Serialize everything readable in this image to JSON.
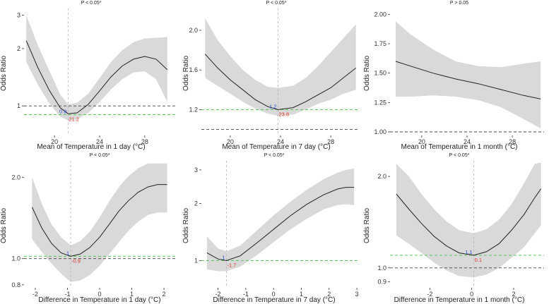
{
  "figure": {
    "colors": {
      "band": "#d9d9d9",
      "curve": "#222222",
      "ref_line": "#444444",
      "min_line": "#45c545",
      "vline": "#b5b5b5",
      "or_label": "#2b4fd6",
      "temp_label": "#e0302a"
    }
  },
  "chart_data": [
    {
      "type": "line",
      "title": "P < 0.05*",
      "xlabel": "Mean of Temperature in 1 day (°C)",
      "ylabel": "Odds Ratio",
      "xlim": [
        17.3,
        30.7
      ],
      "ylim": [
        0.7,
        3.25
      ],
      "ylog": true,
      "xticks": [
        20,
        24,
        28
      ],
      "xtick_labels": [
        "20",
        "24",
        "28"
      ],
      "yticks": [
        1,
        2,
        3
      ],
      "ytick_labels": [
        "1",
        "2",
        "3"
      ],
      "x": [
        17.5,
        18.5,
        19.5,
        20.5,
        21.2,
        22.0,
        23.0,
        24.0,
        25.0,
        26.0,
        27.0,
        28.0,
        29.0,
        30.0
      ],
      "y": [
        2.2,
        1.6,
        1.22,
        0.98,
        0.91,
        0.92,
        1.02,
        1.2,
        1.42,
        1.62,
        1.76,
        1.82,
        1.76,
        1.55
      ],
      "lower": [
        1.7,
        1.3,
        1.04,
        0.88,
        0.84,
        0.85,
        0.92,
        1.05,
        1.22,
        1.38,
        1.5,
        1.52,
        1.38,
        1.05
      ],
      "upper": [
        3.0,
        2.1,
        1.55,
        1.15,
        1.02,
        1.04,
        1.16,
        1.4,
        1.7,
        1.96,
        2.16,
        2.26,
        2.28,
        2.3
      ],
      "ref_line": 1,
      "min_line": 0.9,
      "vline_x": 21.2,
      "or_label": "0.9",
      "temp_label": "21.2"
    },
    {
      "type": "line",
      "title": "P < 0.05*",
      "xlabel": "Mean of Temperature in 7 day (°C)",
      "ylabel": "Odds Ratio",
      "xlim": [
        17.7,
        30.3
      ],
      "ylim": [
        0.94,
        2.22
      ],
      "ylog": false,
      "xticks": [
        20,
        24,
        28
      ],
      "xtick_labels": [
        "20",
        "24",
        "28"
      ],
      "yticks": [
        1.2,
        1.6,
        2.0
      ],
      "ytick_labels": [
        "1.2",
        "1.6",
        "2.0"
      ],
      "x": [
        18.0,
        19.0,
        20.0,
        21.0,
        22.0,
        23.0,
        23.8,
        25.0,
        26.0,
        27.0,
        28.0,
        29.0,
        30.0
      ],
      "y": [
        1.76,
        1.62,
        1.5,
        1.4,
        1.3,
        1.23,
        1.2,
        1.22,
        1.28,
        1.35,
        1.42,
        1.52,
        1.62
      ],
      "lower": [
        1.52,
        1.44,
        1.36,
        1.28,
        1.21,
        1.16,
        1.14,
        1.15,
        1.2,
        1.26,
        1.3,
        1.36,
        1.4
      ],
      "upper": [
        2.12,
        1.9,
        1.74,
        1.6,
        1.5,
        1.43,
        1.42,
        1.44,
        1.52,
        1.64,
        1.78,
        1.92,
        2.06
      ],
      "ref_line": 1,
      "min_line": 1.2,
      "vline_x": 23.8,
      "or_label": "1.2",
      "temp_label": "23.8"
    },
    {
      "type": "line",
      "title": "P > 0.05",
      "xlabel": "Mean of Temperature in 1 month (°C)",
      "ylabel": "Odds Ratio",
      "xlim": [
        17.2,
        30.8
      ],
      "ylim": [
        0.97,
        2.05
      ],
      "ylog": false,
      "xticks": [
        20,
        24,
        28
      ],
      "xtick_labels": [
        "20",
        "24",
        "28"
      ],
      "yticks": [
        1.0,
        1.25,
        1.5,
        1.75,
        2.0
      ],
      "ytick_labels": [
        "1.00",
        "1.25",
        "1.50",
        "1.75",
        "2.00"
      ],
      "x": [
        17.7,
        19.0,
        21.0,
        23.0,
        25.0,
        27.0,
        29.0,
        30.5
      ],
      "y": [
        1.6,
        1.56,
        1.5,
        1.45,
        1.41,
        1.36,
        1.31,
        1.28
      ],
      "lower": [
        1.3,
        1.3,
        1.31,
        1.3,
        1.27,
        1.21,
        1.11,
        1.03
      ],
      "upper": [
        1.94,
        1.83,
        1.7,
        1.6,
        1.56,
        1.55,
        1.58,
        1.6
      ],
      "ref_line": 1,
      "min_line": null,
      "vline_x": null,
      "or_label": "",
      "temp_label": ""
    },
    {
      "type": "line",
      "title": "P < 0.05*",
      "xlabel": "Difference in Temperature in 1 day (°C)",
      "ylabel": "Odds Ratio",
      "xlim": [
        -2.35,
        2.35
      ],
      "ylim": [
        0.78,
        2.3
      ],
      "ylog": true,
      "xticks": [
        -2,
        -1,
        0,
        1,
        2
      ],
      "xtick_labels": [
        "-2",
        "-1",
        "0",
        "1",
        "2"
      ],
      "yticks": [
        0.8,
        1.0,
        2.0
      ],
      "ytick_labels": [
        "0.8",
        "1.0",
        "2.0"
      ],
      "x": [
        -2.1,
        -1.8,
        -1.5,
        -1.2,
        -0.9,
        -0.6,
        -0.3,
        0.0,
        0.3,
        0.6,
        0.9,
        1.2,
        1.5,
        1.8,
        2.1
      ],
      "y": [
        1.55,
        1.3,
        1.14,
        1.05,
        1.02,
        1.04,
        1.1,
        1.2,
        1.34,
        1.5,
        1.64,
        1.76,
        1.84,
        1.88,
        1.88
      ],
      "lower": [
        1.18,
        1.06,
        0.96,
        0.88,
        0.82,
        0.83,
        0.87,
        0.94,
        1.04,
        1.15,
        1.27,
        1.37,
        1.45,
        1.48,
        1.48
      ],
      "upper": [
        2.0,
        1.6,
        1.34,
        1.2,
        1.12,
        1.16,
        1.26,
        1.42,
        1.63,
        1.84,
        2.02,
        2.16,
        2.25,
        2.25,
        2.25
      ],
      "ref_line": 1,
      "min_line": 1.02,
      "vline_x": -0.9,
      "or_label": "1",
      "temp_label": "-0.9"
    },
    {
      "type": "line",
      "title": "P < 0.05*",
      "xlabel": "Difference in Temperature in 7 day (°C)",
      "ylabel": "Odds Ratio",
      "xlim": [
        -2.6,
        3.1
      ],
      "ylim": [
        0.72,
        3.35
      ],
      "ylog": true,
      "xticks": [
        -2,
        -1,
        0,
        1,
        2,
        3
      ],
      "xtick_labels": [
        "-2",
        "-1",
        "0",
        "1",
        "2",
        "3"
      ],
      "yticks": [
        1,
        2,
        3
      ],
      "ytick_labels": [
        "1",
        "2",
        "3"
      ],
      "x": [
        -2.4,
        -2.0,
        -1.7,
        -1.2,
        -0.6,
        0.0,
        0.6,
        1.2,
        1.8,
        2.3,
        2.6,
        2.9
      ],
      "y": [
        1.1,
        1.02,
        1.0,
        1.06,
        1.24,
        1.46,
        1.72,
        1.98,
        2.22,
        2.38,
        2.43,
        2.43
      ],
      "lower": [
        0.9,
        0.88,
        0.88,
        0.93,
        1.07,
        1.25,
        1.46,
        1.66,
        1.86,
        1.96,
        1.98,
        1.96
      ],
      "upper": [
        1.34,
        1.16,
        1.12,
        1.2,
        1.44,
        1.73,
        2.04,
        2.36,
        2.68,
        2.9,
        3.0,
        3.05
      ],
      "ref_line": null,
      "min_line": 1,
      "vline_x": -1.7,
      "or_label": "1",
      "temp_label": "-1.7"
    },
    {
      "type": "line",
      "title": "P < 0.05*",
      "xlabel": "Difference in Temperature in 1 month (°C)",
      "ylabel": "Odds Ratio",
      "xlim": [
        -3.9,
        3.45
      ],
      "ylim": [
        0.86,
        2.25
      ],
      "ylog": true,
      "xticks": [
        -2,
        0,
        2
      ],
      "xtick_labels": [
        "-2",
        "0",
        "2"
      ],
      "yticks": [
        0.9,
        1.0,
        2.0
      ],
      "ytick_labels": [
        "0.9",
        "1.0",
        "2.0"
      ],
      "x": [
        -3.6,
        -3.0,
        -2.4,
        -1.8,
        -1.2,
        -0.6,
        0.1,
        0.7,
        1.3,
        1.9,
        2.5,
        3.0,
        3.3
      ],
      "y": [
        1.75,
        1.56,
        1.4,
        1.27,
        1.18,
        1.12,
        1.1,
        1.13,
        1.2,
        1.33,
        1.5,
        1.7,
        1.82
      ],
      "lower": [
        1.28,
        1.2,
        1.12,
        1.04,
        0.98,
        0.94,
        0.93,
        0.95,
        1.0,
        1.08,
        1.17,
        1.3,
        1.38
      ],
      "upper": [
        2.2,
        2.0,
        1.75,
        1.56,
        1.42,
        1.33,
        1.3,
        1.34,
        1.44,
        1.62,
        1.9,
        2.2,
        2.22
      ],
      "ref_line": 1,
      "min_line": 1.1,
      "vline_x": 0.1,
      "or_label": "1.1",
      "temp_label": "0.1"
    }
  ]
}
